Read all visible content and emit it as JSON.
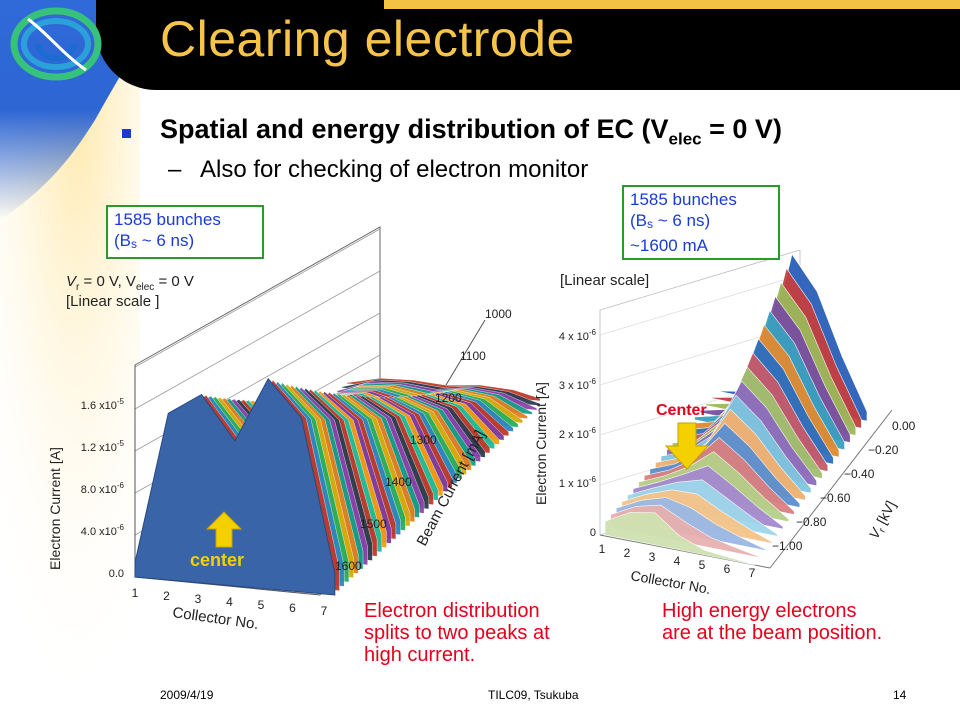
{
  "slide": {
    "title": "Clearing electrode",
    "bullet": {
      "text_before": "Spatial and energy distribution of EC (V",
      "sub": "elec",
      "text_after": " = 0 V)"
    },
    "sub_bullet": {
      "dash": "–",
      "text": "Also for checking of electron monitor"
    },
    "notes": {
      "left": {
        "line1": "1585 bunches",
        "line2_open": "(B",
        "line2_sub": "s",
        "line2_rest": " ~ 6 ns)"
      },
      "right": {
        "line1": "1585 bunches",
        "line2_open": "(B",
        "line2_sub": "s",
        "line2_rest": " ~ 6 ns)",
        "line3": "~1600 mA"
      }
    },
    "captions": {
      "left": [
        "Electron distribution",
        "splits to two peaks at",
        "high current."
      ],
      "right": [
        "High energy electrons",
        "are at the beam position."
      ]
    },
    "footer": {
      "date": "2009/4/19",
      "center": "TILC09,  Tsukuba",
      "page": "14"
    },
    "colors": {
      "title": "#f6c44a",
      "bullet": "#1a3bd1",
      "caption": "#e3001b",
      "note_border": "#2a9a2a",
      "arrow": "#f5d000"
    }
  },
  "chart_data": [
    {
      "type": "area",
      "legend_text": {
        "line1": "V",
        "line1_sub": "r",
        "line1_mid": " = 0 V, V",
        "line1_sub2": "elec",
        "line1_end": " = 0 V",
        "line2": "[Linear scale ]"
      },
      "xlabel": "Collector No.",
      "ylabel": "Electron Current [A]",
      "zlabel": "Beam Current [mA]",
      "x_ticks": [
        "1",
        "2",
        "3",
        "4",
        "5",
        "6",
        "7"
      ],
      "y_ticks": [
        "0.0",
        "4.0 x10",
        "8.0 x10",
        "1.2 x10",
        "1.6 x10"
      ],
      "y_tick_exps": [
        "",
        "-6",
        "-6",
        "-5",
        "-5"
      ],
      "z_ticks": [
        "1600",
        "1500",
        "1400",
        "1300",
        "1200",
        "1100",
        "1000"
      ],
      "ylim": [
        0,
        1.6e-05
      ],
      "center_label": "center",
      "series": [
        {
          "beam_current_mA": 1600,
          "values": [
            1e-06,
            1.15e-05,
            1.3e-05,
            1e-05,
            1.45e-05,
            1.2e-05,
            1.5e-06
          ]
        }
      ]
    },
    {
      "type": "area",
      "legend_text": {
        "line1": "[Linear scale]"
      },
      "xlabel": "Collector No.",
      "ylabel": "Electron Current [A]",
      "zlabel": "V",
      "zlabel_sub": "r",
      "zlabel_end": " [kV]",
      "x_ticks": [
        "1",
        "2",
        "3",
        "4",
        "5",
        "6",
        "7"
      ],
      "y_ticks": [
        "0",
        "1 x 10",
        "2 x 10",
        "3 x 10",
        "4 x 10"
      ],
      "y_tick_exps": [
        "",
        "-6",
        "-6",
        "-6",
        "-6"
      ],
      "z_ticks": [
        "0.00",
        "−0.20",
        "−0.40",
        "−0.60",
        "−0.80",
        "−1.00"
      ],
      "ylim": [
        0,
        4.5e-06
      ],
      "center_label": "Center",
      "series": [
        {
          "vr_kV": -1.0,
          "values": [
            3e-07,
            6e-07,
            7e-07,
            3e-07,
            1e-07,
            5e-08,
            0.0
          ]
        },
        {
          "vr_kV": 0.0,
          "values": [
            0.0,
            1e-07,
            9e-07,
            3.3e-06,
            2.6e-06,
            1.3e-06,
            2e-07
          ]
        }
      ]
    }
  ]
}
